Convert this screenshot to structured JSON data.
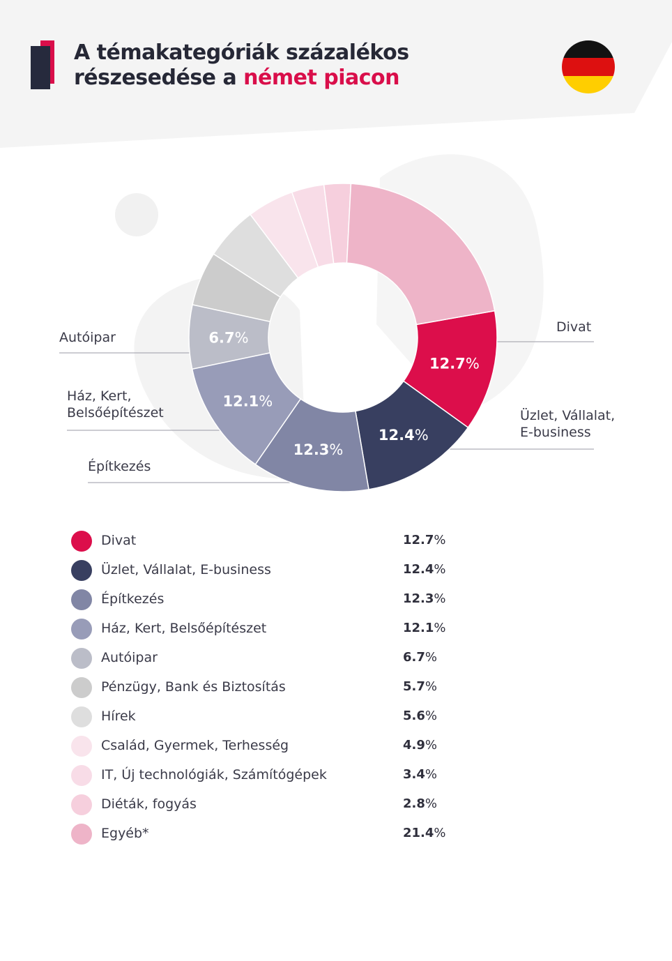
{
  "header": {
    "title_line1": "A témakategóriák százalékos",
    "title_line2_prefix": "részesedése a ",
    "title_line2_accent": "német piacon"
  },
  "colors": {
    "accent": "#d90e4a",
    "header_bg": "#f4f4f4",
    "flag_black": "#121212",
    "flag_red": "#dd1010",
    "flag_gold": "#ffce00"
  },
  "chart_data": {
    "type": "pie",
    "donut": true,
    "unit": "%",
    "categories": [
      "Divat",
      "Üzlet, Vállalat, E-business",
      "Építkezés",
      "Ház, Kert, Belsőépítészet",
      "Autóipar",
      "Pénzügy, Bank és Biztosítás",
      "Hírek",
      "Család, Gyermek, Terhesség",
      "IT, Új technológiák, Számítógépek",
      "Diéták, fogyás",
      "Egyéb*"
    ],
    "values": [
      12.7,
      12.4,
      12.3,
      12.1,
      6.7,
      5.7,
      5.6,
      4.9,
      3.4,
      2.8,
      21.4
    ],
    "colors": [
      "#dc0e4b",
      "#383f60",
      "#8186a5",
      "#989cb8",
      "#bbbdc8",
      "#cccccc",
      "#dedede",
      "#f9e4ec",
      "#f8dce7",
      "#f6cfdd",
      "#eeb4c8"
    ],
    "slice_labels": [
      "12.7",
      "12.4",
      "12.3",
      "12.1",
      "6.7",
      "",
      "",
      "",
      "",
      "",
      ""
    ],
    "callouts": [
      {
        "label_line1": "Divat",
        "label_line2": ""
      },
      {
        "label_line1": "Üzlet, Vállalat,",
        "label_line2": "E-business"
      },
      {
        "label_line1": "Építkezés",
        "label_line2": ""
      },
      {
        "label_line1": "Ház, Kert,",
        "label_line2": "Belsőépítészet"
      },
      {
        "label_line1": "Autóipar",
        "label_line2": ""
      }
    ]
  },
  "legend": {
    "items": [
      {
        "label": "Divat",
        "value": "12.7",
        "color": "#dc0e4b"
      },
      {
        "label": "Üzlet, Vállalat, E-business",
        "value": "12.4",
        "color": "#383f60"
      },
      {
        "label": "Építkezés",
        "value": "12.3",
        "color": "#8186a5"
      },
      {
        "label": "Ház, Kert, Belsőépítészet",
        "value": "12.1",
        "color": "#989cb8"
      },
      {
        "label": "Autóipar",
        "value": "6.7",
        "color": "#bbbdc8"
      },
      {
        "label": "Pénzügy, Bank és Biztosítás",
        "value": "5.7",
        "color": "#cccccc"
      },
      {
        "label": "Hírek",
        "value": "5.6",
        "color": "#dedede"
      },
      {
        "label": "Család, Gyermek, Terhesség",
        "value": "4.9",
        "color": "#f9e4ec"
      },
      {
        "label": "IT, Új technológiák, Számítógépek",
        "value": "3.4",
        "color": "#f8dce7"
      },
      {
        "label": "Diéták, fogyás",
        "value": "2.8",
        "color": "#f6cfdd"
      },
      {
        "label": "Egyéb*",
        "value": "21.4",
        "color": "#eeb4c8"
      }
    ]
  }
}
